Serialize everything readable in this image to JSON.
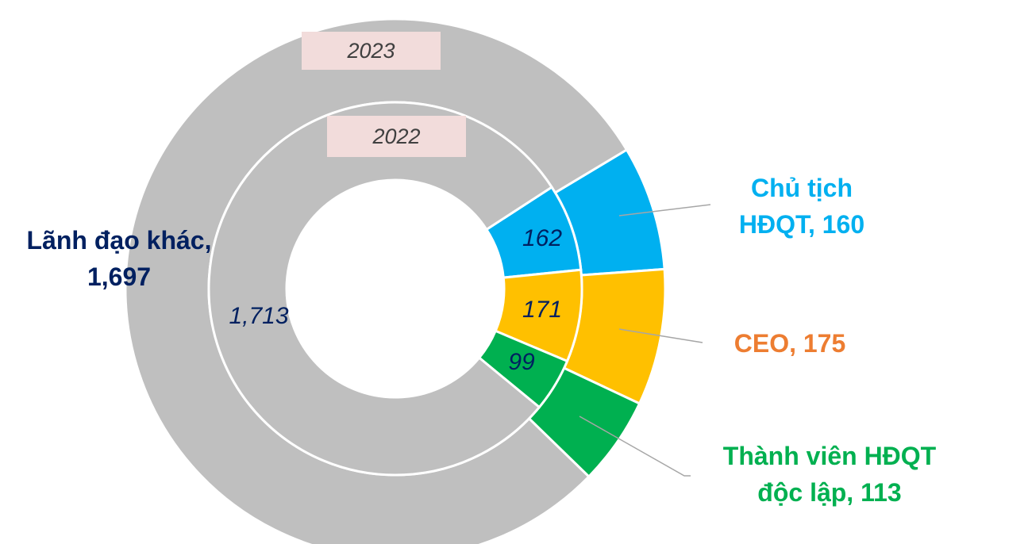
{
  "chart_data": {
    "type": "donut",
    "categories": [
      "Chủ tịch HĐQT",
      "CEO",
      "Thành viên HĐQT độc lập",
      "Lãnh đạo khác"
    ],
    "colors": [
      "#00b0f0",
      "#ffc000",
      "#00b050",
      "#bfbfbf"
    ],
    "label_colors": [
      "#00b0f0",
      "#ed7d31",
      "#00b050",
      "#002060"
    ],
    "series": [
      {
        "name": "2023",
        "values": [
          160,
          175,
          113,
          1697
        ],
        "labels": [
          "Chủ tịch HĐQT, 160",
          "CEO, 175",
          "Thành viên HĐQT độc lập, 113",
          "Lãnh đạo khác, 1,697"
        ]
      },
      {
        "name": "2022",
        "values": [
          162,
          171,
          99,
          1713
        ],
        "value_labels": [
          "162",
          "171",
          "99",
          "1,713"
        ]
      }
    ]
  }
}
